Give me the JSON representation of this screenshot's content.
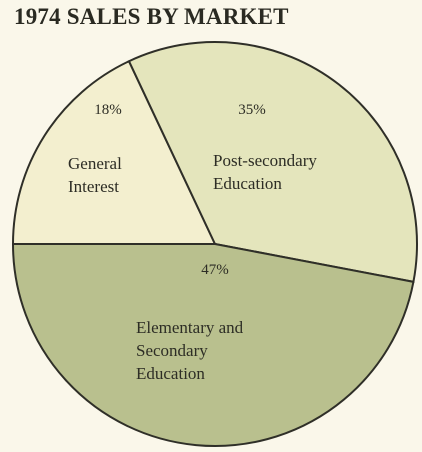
{
  "chart_data": {
    "type": "pie",
    "title": "1974 SALES BY MARKET",
    "categories": [
      "General Interest",
      "Post-secondary Education",
      "Elementary and Secondary Education"
    ],
    "values": [
      18,
      35,
      47
    ],
    "value_labels": [
      "18%",
      "35%",
      "47%"
    ],
    "colors": [
      "#f3efcf",
      "#e4e5bc",
      "#b9c08e"
    ]
  }
}
